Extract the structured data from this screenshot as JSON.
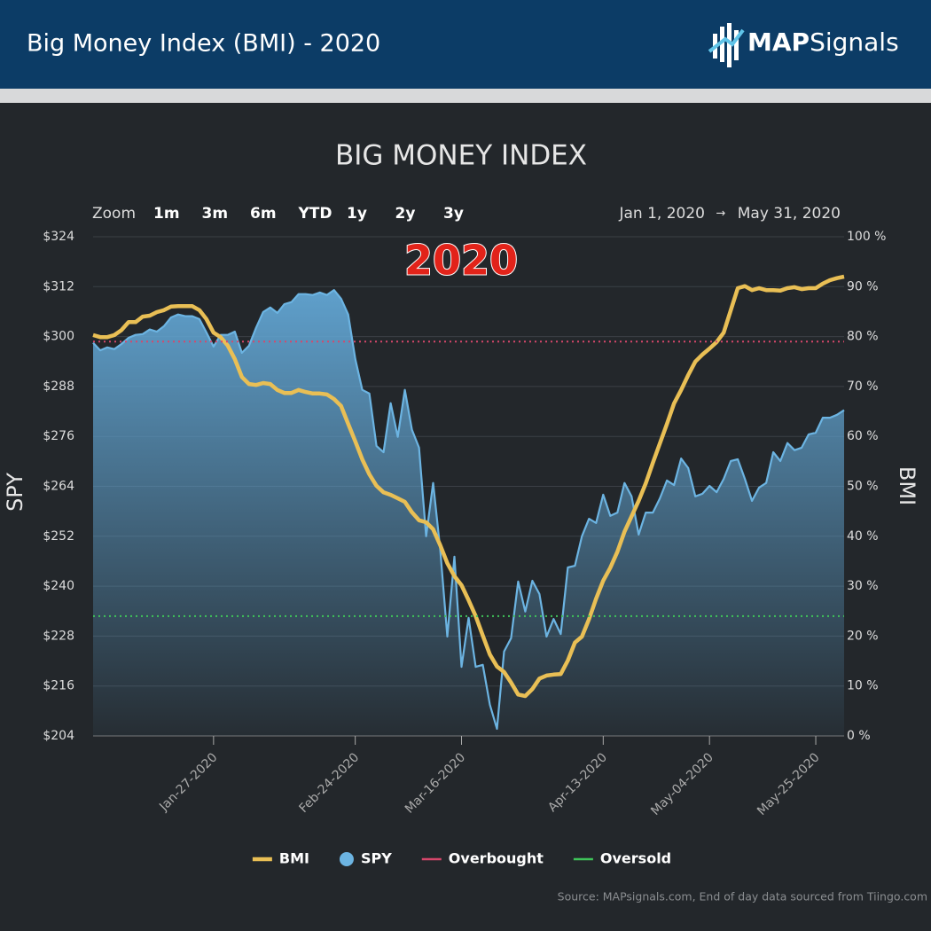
{
  "header": {
    "title": "Big Money Index (BMI) - 2020",
    "logo_bold": "MAP",
    "logo_text": "Signals"
  },
  "toolbar": {
    "zoom_label": "Zoom",
    "buttons": [
      "1m",
      "3m",
      "6m",
      "YTD",
      "1y",
      "2y",
      "3y"
    ],
    "range_from": "Jan 1, 2020",
    "range_arrow": "→",
    "range_to": "May 31, 2020"
  },
  "source": "Source: MAPsignals.com, End of day data sourced from Tiingo.com",
  "chart_data": {
    "type": "line",
    "title": "BIG MONEY INDEX",
    "annotation": "2020",
    "y_label": "SPY",
    "y2_label": "BMI",
    "x": [
      "Jan-02-2020",
      "Jan-03-2020",
      "Jan-06-2020",
      "Jan-07-2020",
      "Jan-08-2020",
      "Jan-09-2020",
      "Jan-10-2020",
      "Jan-13-2020",
      "Jan-14-2020",
      "Jan-15-2020",
      "Jan-16-2020",
      "Jan-17-2020",
      "Jan-20-2020",
      "Jan-21-2020",
      "Jan-22-2020",
      "Jan-23-2020",
      "Jan-24-2020",
      "Jan-27-2020",
      "Jan-28-2020",
      "Jan-29-2020",
      "Jan-30-2020",
      "Jan-31-2020",
      "Feb-03-2020",
      "Feb-04-2020",
      "Feb-05-2020",
      "Feb-06-2020",
      "Feb-07-2020",
      "Feb-10-2020",
      "Feb-11-2020",
      "Feb-12-2020",
      "Feb-13-2020",
      "Feb-14-2020",
      "Feb-17-2020",
      "Feb-18-2020",
      "Feb-19-2020",
      "Feb-20-2020",
      "Feb-21-2020",
      "Feb-24-2020",
      "Feb-25-2020",
      "Feb-26-2020",
      "Feb-27-2020",
      "Feb-28-2020",
      "Mar-02-2020",
      "Mar-03-2020",
      "Mar-04-2020",
      "Mar-05-2020",
      "Mar-06-2020",
      "Mar-09-2020",
      "Mar-10-2020",
      "Mar-11-2020",
      "Mar-12-2020",
      "Mar-13-2020",
      "Mar-16-2020",
      "Mar-17-2020",
      "Mar-18-2020",
      "Mar-19-2020",
      "Mar-20-2020",
      "Mar-23-2020",
      "Mar-24-2020",
      "Mar-25-2020",
      "Mar-26-2020",
      "Mar-27-2020",
      "Mar-30-2020",
      "Mar-31-2020",
      "Apr-01-2020",
      "Apr-02-2020",
      "Apr-03-2020",
      "Apr-06-2020",
      "Apr-07-2020",
      "Apr-08-2020",
      "Apr-09-2020",
      "Apr-10-2020",
      "Apr-13-2020",
      "Apr-14-2020",
      "Apr-15-2020",
      "Apr-16-2020",
      "Apr-17-2020",
      "Apr-20-2020",
      "Apr-21-2020",
      "Apr-22-2020",
      "Apr-23-2020",
      "Apr-24-2020",
      "Apr-27-2020",
      "Apr-28-2020",
      "Apr-29-2020",
      "Apr-30-2020",
      "May-01-2020",
      "May-04-2020",
      "May-05-2020",
      "May-06-2020",
      "May-07-2020",
      "May-08-2020",
      "May-11-2020",
      "May-12-2020",
      "May-13-2020",
      "May-14-2020",
      "May-15-2020",
      "May-18-2020",
      "May-19-2020",
      "May-20-2020",
      "May-21-2020",
      "May-22-2020",
      "May-25-2020",
      "May-26-2020",
      "May-27-2020",
      "May-28-2020",
      "May-29-2020"
    ],
    "xticks": [
      "Jan-27-2020",
      "Feb-24-2020",
      "Mar-16-2020",
      "Apr-13-2020",
      "May-04-2020",
      "May-25-2020"
    ],
    "ylim": [
      204,
      324
    ],
    "yticks": [
      {
        "value": 204,
        "label": "$204"
      },
      {
        "value": 216,
        "label": "$216"
      },
      {
        "value": 228,
        "label": "$228"
      },
      {
        "value": 240,
        "label": "$240"
      },
      {
        "value": 252,
        "label": "$252"
      },
      {
        "value": 264,
        "label": "$264"
      },
      {
        "value": 276,
        "label": "$276"
      },
      {
        "value": 288,
        "label": "$288"
      },
      {
        "value": 300,
        "label": "$300"
      },
      {
        "value": 312,
        "label": "$312"
      },
      {
        "value": 324,
        "label": "$324"
      }
    ],
    "y2lim": [
      0,
      100
    ],
    "y2ticks": [
      {
        "value": 0,
        "label": "0 %"
      },
      {
        "value": 10,
        "label": "10 %"
      },
      {
        "value": 20,
        "label": "20 %"
      },
      {
        "value": 30,
        "label": "30 %"
      },
      {
        "value": 40,
        "label": "40 %"
      },
      {
        "value": 50,
        "label": "50 %"
      },
      {
        "value": 60,
        "label": "60 %"
      },
      {
        "value": 70,
        "label": "70 %"
      },
      {
        "value": 80,
        "label": "80 %"
      },
      {
        "value": 90,
        "label": "90 %"
      },
      {
        "value": 100,
        "label": "100 %"
      }
    ],
    "grid": true,
    "series": [
      {
        "name": "BMI",
        "color": "#e9bf55",
        "axis": "y2",
        "values": [
          80.3,
          79.9,
          79.9,
          80.3,
          81.3,
          82.9,
          82.9,
          84.0,
          84.2,
          84.9,
          85.3,
          86.0,
          86.1,
          86.1,
          86.1,
          85.3,
          83.5,
          80.8,
          79.9,
          78.2,
          75.5,
          71.9,
          70.5,
          70.3,
          70.7,
          70.5,
          69.3,
          68.7,
          68.7,
          69.3,
          68.9,
          68.6,
          68.6,
          68.4,
          67.5,
          66.1,
          62.5,
          59.0,
          55.4,
          52.4,
          50.1,
          48.8,
          48.3,
          47.6,
          46.9,
          44.8,
          43.2,
          42.8,
          41.4,
          38.2,
          34.6,
          32.0,
          30.2,
          27.2,
          24.0,
          20.1,
          16.3,
          13.9,
          12.8,
          10.7,
          8.3,
          8.0,
          9.4,
          11.5,
          12.1,
          12.3,
          12.4,
          15.1,
          18.7,
          19.9,
          23.4,
          27.5,
          31.1,
          33.7,
          36.9,
          40.9,
          44.0,
          47.1,
          50.6,
          54.7,
          58.6,
          62.5,
          66.6,
          69.3,
          72.3,
          75.0,
          76.4,
          77.6,
          78.9,
          80.8,
          85.3,
          89.7,
          90.1,
          89.3,
          89.7,
          89.3,
          89.3,
          89.2,
          89.7,
          89.9,
          89.5,
          89.7,
          89.7,
          90.6,
          91.3,
          91.7,
          92.0
        ]
      },
      {
        "name": "SPY",
        "color": "#6cb4e2",
        "axis": "y",
        "values": [
          298.5,
          296.7,
          297.4,
          297.0,
          298.2,
          299.7,
          300.4,
          300.6,
          301.7,
          301.2,
          302.5,
          304.6,
          305.3,
          304.9,
          304.9,
          304.2,
          301.0,
          297.6,
          300.4,
          300.4,
          301.2,
          296.1,
          297.8,
          302.1,
          305.9,
          307.0,
          305.7,
          307.8,
          308.3,
          310.2,
          310.2,
          310.0,
          310.6,
          310.0,
          311.2,
          309.1,
          305.3,
          294.6,
          287.2,
          286.3,
          273.7,
          272.2,
          284.0,
          275.9,
          287.2,
          277.6,
          273.3,
          252.0,
          264.8,
          248.8,
          227.9,
          247.1,
          220.6,
          232.4,
          220.6,
          221.1,
          211.5,
          205.7,
          224.3,
          227.5,
          241.1,
          233.9,
          241.3,
          238.1,
          227.9,
          232.1,
          228.5,
          244.5,
          244.9,
          252.0,
          256.2,
          255.2,
          262.0,
          256.9,
          257.7,
          264.8,
          261.6,
          252.4,
          257.7,
          257.7,
          261.1,
          265.4,
          264.3,
          270.7,
          268.4,
          261.6,
          262.2,
          264.1,
          262.6,
          265.8,
          270.1,
          270.5,
          265.8,
          260.5,
          263.7,
          264.8,
          272.2,
          270.1,
          274.4,
          272.7,
          273.3,
          276.5,
          276.9,
          280.5,
          280.5,
          281.2,
          282.3
        ]
      }
    ],
    "reference_lines": [
      {
        "name": "Overbought",
        "value": 79,
        "axis": "y2",
        "color": "#d6476b"
      },
      {
        "name": "Oversold",
        "value": 24,
        "axis": "y2",
        "color": "#3fc45a"
      }
    ]
  }
}
